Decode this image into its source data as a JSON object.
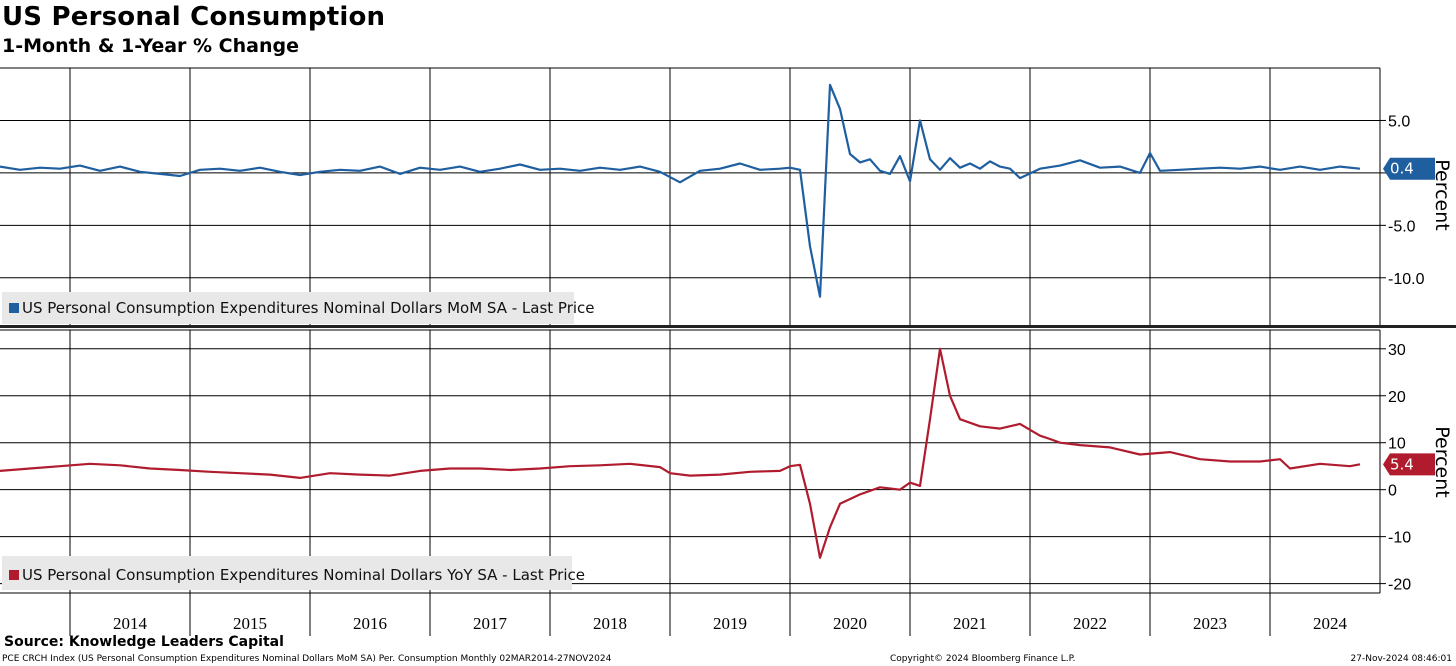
{
  "title": "US Personal Consumption",
  "subtitle": "1-Month & 1-Year % Change",
  "source": "Source: Knowledge Leaders Capital",
  "footer": {
    "left": "PCE CRCH Index (US Personal Consumption Expenditures Nominal Dollars MoM SA) Per. Consumption  Monthly 02MAR2014-27NOV2024",
    "center": "Copyright© 2024 Bloomberg Finance L.P.",
    "right": "27-Nov-2024 08:46:01"
  },
  "colors": {
    "mom": "#1f5fa0",
    "yoy": "#b01c2e",
    "grid": "#000000",
    "legend_bg": "#e8e8e8"
  },
  "x_axis": {
    "type": "date",
    "range": [
      "2013-06-01",
      "2024-12-01"
    ],
    "year_labels": [
      "2014",
      "2015",
      "2016",
      "2017",
      "2018",
      "2019",
      "2020",
      "2021",
      "2022",
      "2023",
      "2024"
    ]
  },
  "chart_data": [
    {
      "type": "line",
      "name": "mom",
      "ylabel": "Percent",
      "ylim": [
        -14.5,
        10
      ],
      "yticks": [
        5.0,
        0,
        -5.0,
        -10.0
      ],
      "ytick_labels": [
        "5.0",
        "",
        "-5.0",
        "-10.0"
      ],
      "grid": true,
      "legend": "US Personal Consumption Expenditures Nominal Dollars MoM SA - Last Price",
      "legend_placement": "bottom-left",
      "last_value": 0.4,
      "last_label": "0.4",
      "series": [
        {
          "name": "US Personal Consumption Expenditures Nominal Dollars MoM SA - Last Price",
          "x": [
            "2013-06",
            "2013-08",
            "2013-10",
            "2013-12",
            "2014-02",
            "2014-04",
            "2014-06",
            "2014-08",
            "2014-10",
            "2014-12",
            "2015-02",
            "2015-04",
            "2015-06",
            "2015-08",
            "2015-10",
            "2015-12",
            "2016-02",
            "2016-04",
            "2016-06",
            "2016-08",
            "2016-10",
            "2016-12",
            "2017-02",
            "2017-04",
            "2017-06",
            "2017-08",
            "2017-10",
            "2017-12",
            "2018-02",
            "2018-04",
            "2018-06",
            "2018-08",
            "2018-10",
            "2018-12",
            "2019-02",
            "2019-04",
            "2019-06",
            "2019-08",
            "2019-10",
            "2019-12",
            "2020-01",
            "2020-02",
            "2020-03",
            "2020-04",
            "2020-05",
            "2020-06",
            "2020-07",
            "2020-08",
            "2020-09",
            "2020-10",
            "2020-11",
            "2020-12",
            "2021-01",
            "2021-02",
            "2021-03",
            "2021-04",
            "2021-05",
            "2021-06",
            "2021-07",
            "2021-08",
            "2021-09",
            "2021-10",
            "2021-11",
            "2021-12",
            "2022-02",
            "2022-04",
            "2022-06",
            "2022-08",
            "2022-10",
            "2022-12",
            "2023-01",
            "2023-02",
            "2023-04",
            "2023-06",
            "2023-08",
            "2023-10",
            "2023-12",
            "2024-02",
            "2024-04",
            "2024-06",
            "2024-08",
            "2024-10"
          ],
          "y": [
            0.6,
            0.3,
            0.5,
            0.4,
            0.7,
            0.2,
            0.6,
            0.1,
            -0.1,
            -0.3,
            0.3,
            0.4,
            0.2,
            0.5,
            0.1,
            -0.2,
            0.1,
            0.3,
            0.2,
            0.6,
            -0.1,
            0.5,
            0.3,
            0.6,
            0.1,
            0.4,
            0.8,
            0.3,
            0.4,
            0.2,
            0.5,
            0.3,
            0.6,
            0.1,
            -0.9,
            0.2,
            0.4,
            0.9,
            0.3,
            0.4,
            0.5,
            0.3,
            -7.0,
            -11.8,
            8.4,
            6.1,
            1.8,
            1.0,
            1.3,
            0.2,
            -0.1,
            1.6,
            -0.8,
            5.0,
            1.3,
            0.3,
            1.4,
            0.5,
            0.9,
            0.4,
            1.1,
            0.6,
            0.4,
            -0.5,
            0.4,
            0.7,
            1.2,
            0.5,
            0.6,
            0.0,
            1.9,
            0.2,
            0.3,
            0.4,
            0.5,
            0.4,
            0.6,
            0.3,
            0.6,
            0.3,
            0.6,
            0.4
          ]
        }
      ]
    },
    {
      "type": "line",
      "name": "yoy",
      "ylabel": "Percent",
      "ylim": [
        -22,
        34
      ],
      "yticks": [
        30,
        20,
        10,
        0,
        -10,
        -20
      ],
      "ytick_labels": [
        "30",
        "20",
        "10",
        "0",
        "-10",
        "-20"
      ],
      "grid": true,
      "legend": "US Personal Consumption Expenditures Nominal Dollars YoY SA - Last Price",
      "legend_placement": "bottom-left",
      "last_value": 5.4,
      "last_label": "5.4",
      "series": [
        {
          "name": "US Personal Consumption Expenditures Nominal Dollars YoY SA - Last Price",
          "x": [
            "2013-06",
            "2013-09",
            "2013-12",
            "2014-03",
            "2014-06",
            "2014-09",
            "2014-12",
            "2015-03",
            "2015-06",
            "2015-09",
            "2015-12",
            "2016-03",
            "2016-06",
            "2016-09",
            "2016-12",
            "2017-03",
            "2017-06",
            "2017-09",
            "2017-12",
            "2018-03",
            "2018-06",
            "2018-09",
            "2018-12",
            "2019-01",
            "2019-03",
            "2019-06",
            "2019-09",
            "2019-12",
            "2020-01",
            "2020-02",
            "2020-03",
            "2020-04",
            "2020-05",
            "2020-06",
            "2020-08",
            "2020-10",
            "2020-12",
            "2021-01",
            "2021-02",
            "2021-03",
            "2021-04",
            "2021-05",
            "2021-06",
            "2021-08",
            "2021-10",
            "2021-12",
            "2022-02",
            "2022-03",
            "2022-04",
            "2022-06",
            "2022-09",
            "2022-12",
            "2023-03",
            "2023-06",
            "2023-09",
            "2023-12",
            "2024-02",
            "2024-03",
            "2024-06",
            "2024-09",
            "2024-10"
          ],
          "y": [
            4.0,
            4.5,
            5.0,
            5.5,
            5.2,
            4.5,
            4.2,
            3.8,
            3.5,
            3.2,
            2.5,
            3.5,
            3.2,
            3.0,
            4.0,
            4.5,
            4.5,
            4.2,
            4.5,
            5.0,
            5.2,
            5.5,
            4.8,
            3.5,
            3.0,
            3.2,
            3.8,
            4.0,
            5.0,
            5.3,
            -3.0,
            -14.5,
            -8.0,
            -3.0,
            -1.0,
            0.5,
            0.0,
            1.5,
            0.8,
            15.0,
            30.0,
            20.0,
            15.0,
            13.5,
            13.0,
            14.0,
            11.5,
            10.8,
            10.0,
            9.5,
            9.0,
            7.5,
            8.0,
            6.5,
            6.0,
            6.0,
            6.5,
            4.5,
            5.5,
            5.0,
            5.4
          ]
        }
      ]
    }
  ]
}
